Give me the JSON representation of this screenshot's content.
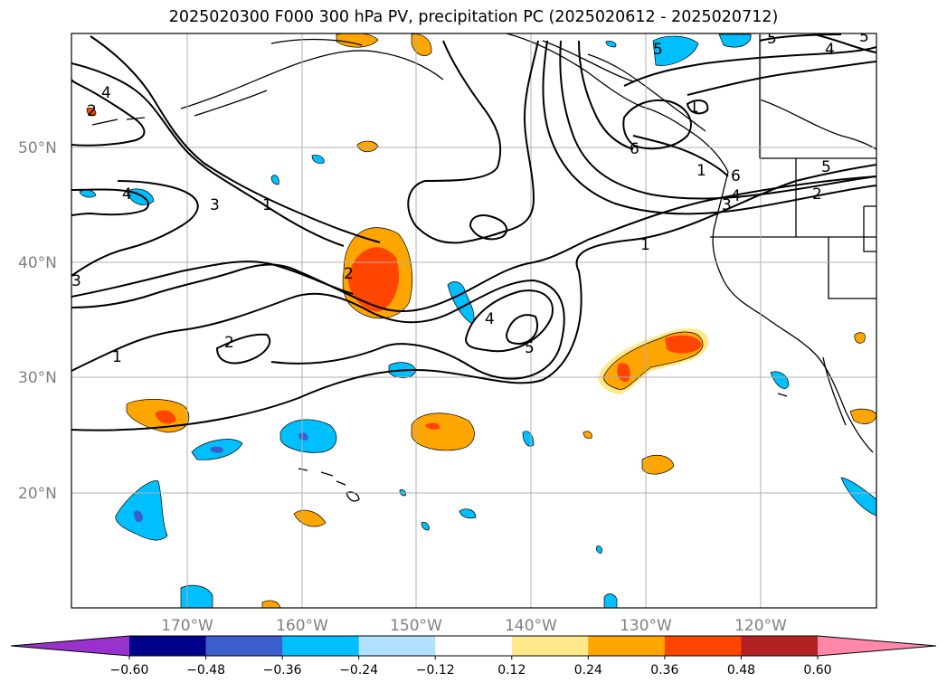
{
  "title": "2025020300 F000 300 hPa PV, precipitation PC (2025020612 - 2025020712)",
  "map": {
    "lat_labels": [
      "50°N",
      "40°N",
      "30°N",
      "20°N"
    ],
    "lon_labels": [
      "170°W",
      "160°W",
      "150°W",
      "140°W",
      "130°W",
      "120°W"
    ],
    "grid": true
  },
  "colorbar": {
    "ticks": [
      "−0.60",
      "−0.48",
      "−0.36",
      "−0.24",
      "−0.12",
      "0.12",
      "0.24",
      "0.36",
      "0.48",
      "0.60"
    ],
    "colors": [
      "#9932cc",
      "#00008b",
      "#3a5fcd",
      "#00bfff",
      "#b0e2ff",
      "#ffffff",
      "#ffe88a",
      "#ffa500",
      "#ff4500",
      "#b22222",
      "#ff88aa"
    ]
  },
  "pv_contour_labels": [
    "1",
    "1",
    "1",
    "2",
    "2",
    "3",
    "3",
    "4",
    "4",
    "4",
    "5",
    "5",
    "5",
    "6",
    "6",
    "2",
    "1",
    "1",
    "4",
    "5",
    "5",
    "4",
    "3",
    "2"
  ]
}
